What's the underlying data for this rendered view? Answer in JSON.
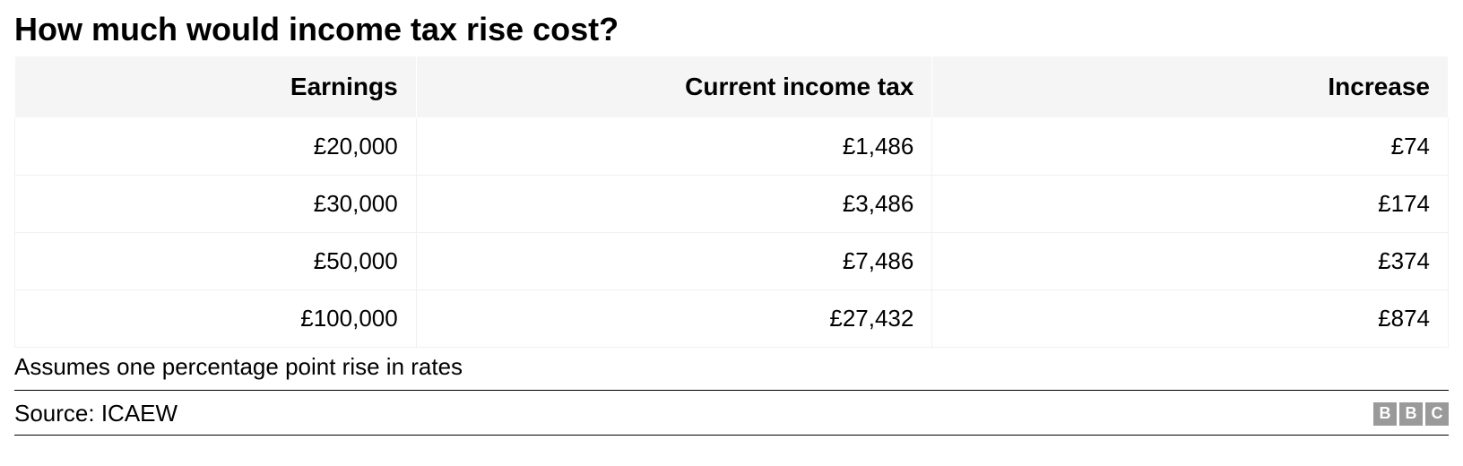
{
  "title": "How much would income tax rise cost?",
  "table": {
    "type": "table",
    "columns": [
      "Earnings",
      "Current income tax",
      "Increase"
    ],
    "column_widths_pct": [
      28,
      36,
      36
    ],
    "header_bg_color": "#f5f5f5",
    "header_font_size": 28,
    "header_font_weight": "bold",
    "cell_font_size": 26,
    "cell_align": "right",
    "border_color": "#f0f0f0",
    "header_border_color": "#ffffff",
    "rows": [
      [
        "£20,000",
        "£1,486",
        "£74"
      ],
      [
        "£30,000",
        "£3,486",
        "£174"
      ],
      [
        "£50,000",
        "£7,486",
        "£374"
      ],
      [
        "£100,000",
        "£27,432",
        "£874"
      ]
    ]
  },
  "note": "Assumes one percentage point rise in rates",
  "source_label": "Source: ICAEW",
  "logo": {
    "letters": [
      "B",
      "B",
      "C"
    ],
    "box_color": "#9a9a9a",
    "text_color": "#ffffff"
  },
  "colors": {
    "background": "#ffffff",
    "text": "#000000",
    "rule": "#000000"
  },
  "title_font_size": 36
}
